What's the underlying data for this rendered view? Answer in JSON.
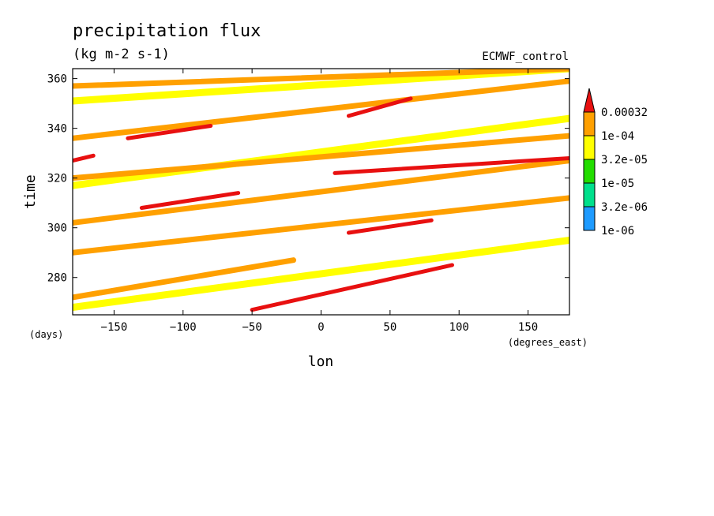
{
  "chart_data": {
    "type": "heatmap",
    "title": "precipitation flux",
    "units": "(kg m-2 s-1)",
    "source_label": "ECMWF_control",
    "xlabel": "lon",
    "ylabel": "time",
    "x_units": "(degrees_east)",
    "y_units": "(days)",
    "xlim": [
      -180,
      180
    ],
    "ylim": [
      265,
      364
    ],
    "x_ticks": [
      -150,
      -100,
      -50,
      0,
      50,
      100,
      150
    ],
    "x_tick_labels": [
      "−150",
      "−100",
      "−50",
      "0",
      "50",
      "100",
      "150"
    ],
    "y_ticks": [
      280,
      300,
      320,
      340,
      360
    ],
    "y_tick_labels": [
      "280",
      "300",
      "320",
      "340",
      "360"
    ],
    "grid": false,
    "legend_placement": "right",
    "colorbar": {
      "levels": [
        "1e-06",
        "3.2e-06",
        "1e-05",
        "3.2e-05",
        "1e-04",
        "0.00032"
      ],
      "level_values": [
        1e-06,
        3.2e-06,
        1e-05,
        3.2e-05,
        0.0001,
        0.00032
      ],
      "colors": [
        "#1e9bff",
        "#00e08c",
        "#22dd00",
        "#ffff00",
        "#ffa000",
        "#e81010"
      ],
      "extend": "max"
    },
    "bands": [
      {
        "level": 4,
        "x0": -180,
        "t0": 272,
        "x1": -20,
        "t1": 287
      },
      {
        "level": 3,
        "x0": -180,
        "t0": 268,
        "x1": 180,
        "t1": 295
      },
      {
        "level": 5,
        "x0": -50,
        "t0": 267,
        "x1": 95,
        "t1": 285
      },
      {
        "level": 4,
        "x0": -180,
        "t0": 290,
        "x1": 180,
        "t1": 312
      },
      {
        "level": 5,
        "x0": 20,
        "t0": 298,
        "x1": 80,
        "t1": 303
      },
      {
        "level": 4,
        "x0": -180,
        "t0": 302,
        "x1": 180,
        "t1": 327
      },
      {
        "level": 5,
        "x0": -130,
        "t0": 308,
        "x1": -60,
        "t1": 314
      },
      {
        "level": 5,
        "x0": 10,
        "t0": 322,
        "x1": 180,
        "t1": 328
      },
      {
        "level": 3,
        "x0": -180,
        "t0": 317,
        "x1": 180,
        "t1": 344
      },
      {
        "level": 4,
        "x0": -180,
        "t0": 320,
        "x1": 180,
        "t1": 337
      },
      {
        "level": 5,
        "x0": -180,
        "t0": 327,
        "x1": -165,
        "t1": 329
      },
      {
        "level": 4,
        "x0": -180,
        "t0": 336,
        "x1": 180,
        "t1": 359
      },
      {
        "level": 5,
        "x0": -140,
        "t0": 336,
        "x1": -80,
        "t1": 341
      },
      {
        "level": 5,
        "x0": 20,
        "t0": 345,
        "x1": 65,
        "t1": 352
      },
      {
        "level": 3,
        "x0": -180,
        "t0": 351,
        "x1": 180,
        "t1": 364
      },
      {
        "level": 4,
        "x0": -180,
        "t0": 357,
        "x1": 180,
        "t1": 364
      }
    ]
  }
}
